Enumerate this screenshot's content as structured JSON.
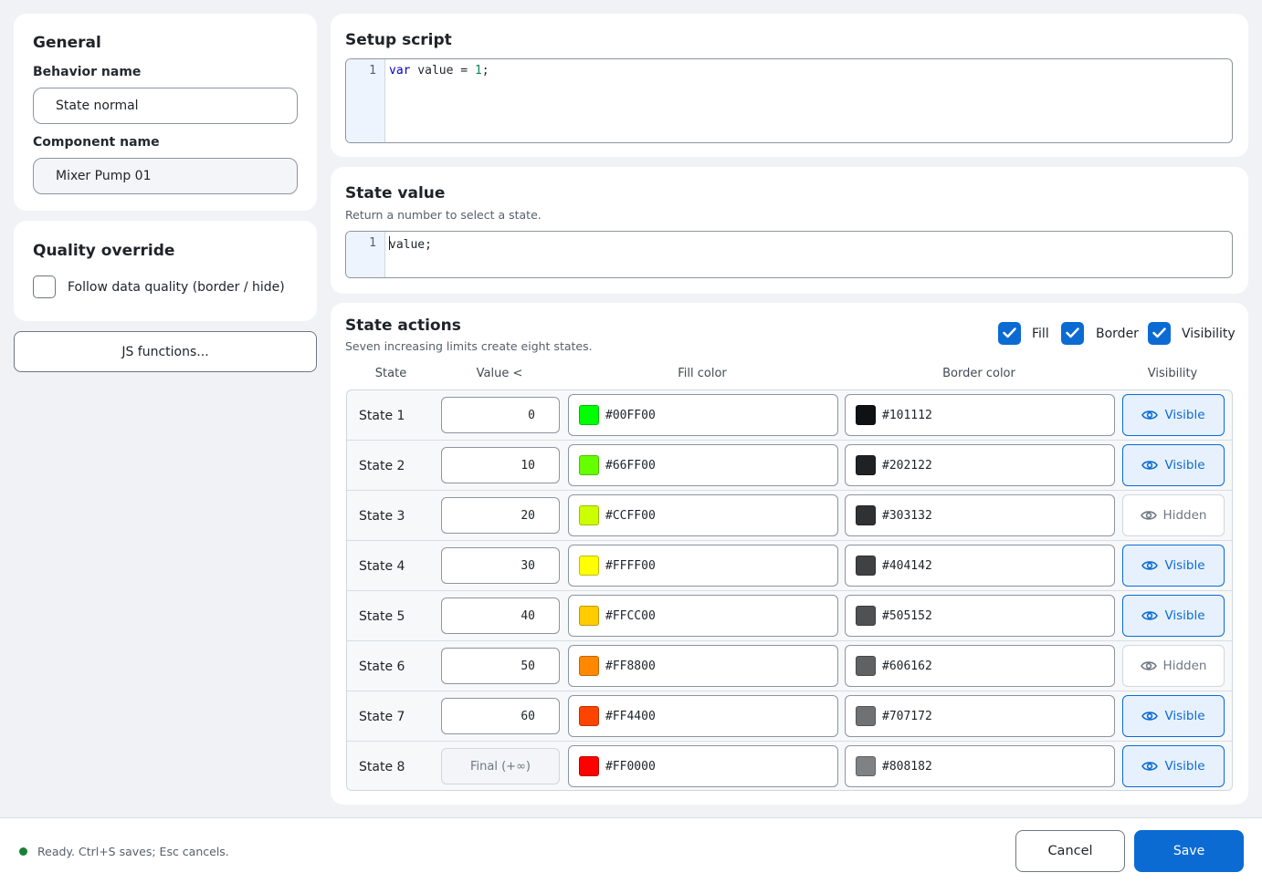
{
  "general": {
    "title": "General",
    "behavior_label": "Behavior name",
    "behavior_value": "State normal",
    "component_label": "Component name",
    "component_value": "Mixer Pump 01"
  },
  "quality": {
    "title": "Quality override",
    "follow_label": "Follow data quality (border / hide)",
    "follow_checked": false
  },
  "js_functions_label": "JS functions...",
  "setup": {
    "title": "Setup script",
    "line_no": "1",
    "code_kw": "var",
    "code_mid": " value = ",
    "code_num": "1",
    "code_end": ";"
  },
  "state_value": {
    "title": "State value",
    "subtitle": "Return a number to select a state.",
    "line_no": "1",
    "code": "value;"
  },
  "actions": {
    "title": "State actions",
    "subtitle": "Seven increasing limits create eight states.",
    "toggles": {
      "fill": {
        "label": "Fill",
        "checked": true
      },
      "border": {
        "label": "Border",
        "checked": true
      },
      "visibility": {
        "label": "Visibility",
        "checked": true
      }
    },
    "columns": {
      "state": "State",
      "value": "Value <",
      "fill": "Fill color",
      "border": "Border color",
      "visibility": "Visibility"
    },
    "rows": [
      {
        "label": "State 1",
        "limit": "0",
        "fill": "#00FF00",
        "border": "#101112",
        "visibility": "Visible"
      },
      {
        "label": "State 2",
        "limit": "10",
        "fill": "#66FF00",
        "border": "#202122",
        "visibility": "Visible"
      },
      {
        "label": "State 3",
        "limit": "20",
        "fill": "#CCFF00",
        "border": "#303132",
        "visibility": "Hidden"
      },
      {
        "label": "State 4",
        "limit": "30",
        "fill": "#FFFF00",
        "border": "#404142",
        "visibility": "Visible"
      },
      {
        "label": "State 5",
        "limit": "40",
        "fill": "#FFCC00",
        "border": "#505152",
        "visibility": "Visible"
      },
      {
        "label": "State 6",
        "limit": "50",
        "fill": "#FF8800",
        "border": "#606162",
        "visibility": "Hidden"
      },
      {
        "label": "State 7",
        "limit": "60",
        "fill": "#FF4400",
        "border": "#707172",
        "visibility": "Visible"
      },
      {
        "label": "State 8",
        "limit": "Final (+∞)",
        "fill": "#FF0000",
        "border": "#808182",
        "visibility": "Visible"
      }
    ]
  },
  "footer": {
    "status": "Ready. Ctrl+S saves; Esc cancels.",
    "status_color": "#1a7f37",
    "cancel_label": "Cancel",
    "save_label": "Save"
  },
  "accent_color": "#0b6bd3"
}
